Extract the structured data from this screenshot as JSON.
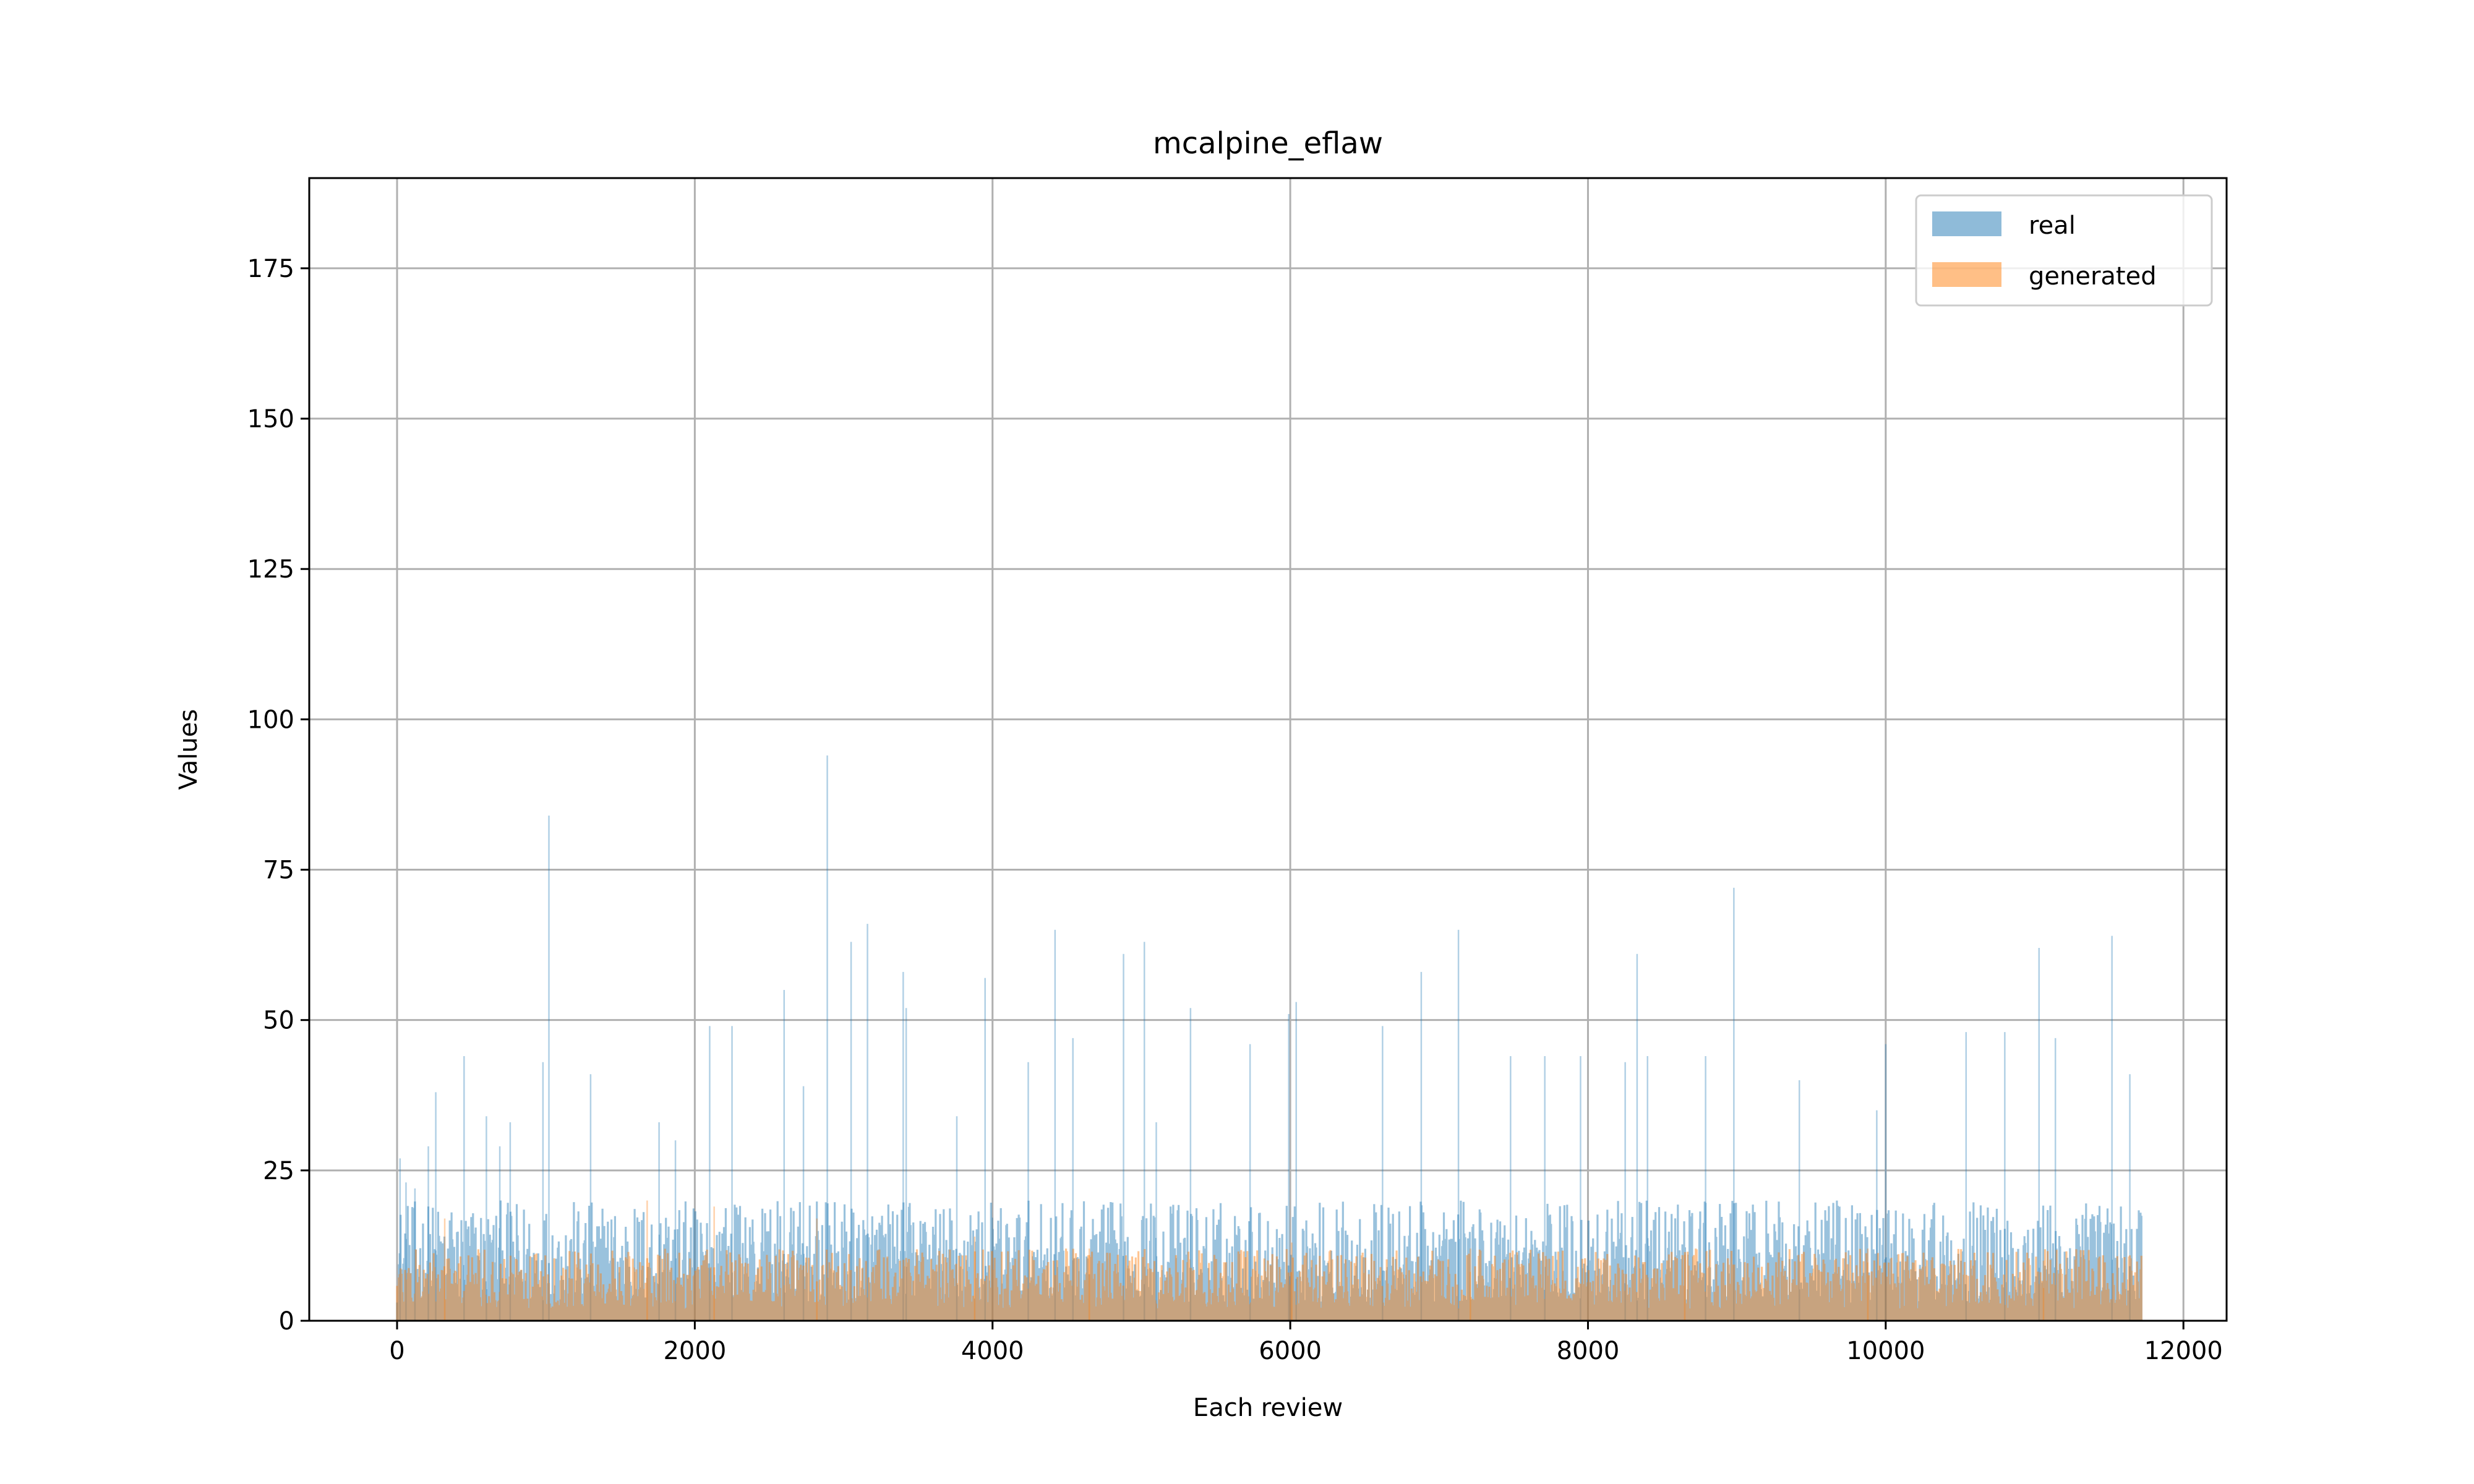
{
  "chart_data": {
    "type": "bar",
    "title": "mcalpine_eflaw",
    "xlabel": "Each review",
    "ylabel": "Values",
    "xlim": [
      -590,
      12290
    ],
    "ylim": [
      0,
      190
    ],
    "x_ticks": [
      0,
      2000,
      4000,
      6000,
      8000,
      10000,
      12000
    ],
    "y_ticks": [
      0,
      25,
      50,
      75,
      100,
      125,
      150,
      175
    ],
    "grid": true,
    "legend_position": "top-right",
    "n_points": 11720,
    "series": [
      {
        "name": "real",
        "color": "#1f77b4",
        "opacity": 0.5,
        "baseline_range": [
          3,
          20
        ],
        "spikes": [
          [
            20,
            27
          ],
          [
            60,
            23
          ],
          [
            120,
            22
          ],
          [
            210,
            29
          ],
          [
            260,
            38
          ],
          [
            450,
            44
          ],
          [
            600,
            34
          ],
          [
            690,
            29
          ],
          [
            760,
            33
          ],
          [
            980,
            43
          ],
          [
            1020,
            84
          ],
          [
            1300,
            41
          ],
          [
            1760,
            33
          ],
          [
            1870,
            30
          ],
          [
            2100,
            49
          ],
          [
            2250,
            49
          ],
          [
            2600,
            55
          ],
          [
            2730,
            39
          ],
          [
            2890,
            94
          ],
          [
            3050,
            63
          ],
          [
            3160,
            66
          ],
          [
            3400,
            58
          ],
          [
            3420,
            52
          ],
          [
            3760,
            34
          ],
          [
            3950,
            57
          ],
          [
            4240,
            43
          ],
          [
            4420,
            65
          ],
          [
            4540,
            47
          ],
          [
            4880,
            61
          ],
          [
            5020,
            63
          ],
          [
            5100,
            33
          ],
          [
            5330,
            52
          ],
          [
            5730,
            46
          ],
          [
            5990,
            51
          ],
          [
            6040,
            53
          ],
          [
            6620,
            49
          ],
          [
            6880,
            58
          ],
          [
            7130,
            65
          ],
          [
            7480,
            44
          ],
          [
            7710,
            44
          ],
          [
            7950,
            44
          ],
          [
            8250,
            43
          ],
          [
            8330,
            61
          ],
          [
            8400,
            44
          ],
          [
            8790,
            44
          ],
          [
            8980,
            72
          ],
          [
            9420,
            40
          ],
          [
            9940,
            35
          ],
          [
            10000,
            46
          ],
          [
            10540,
            48
          ],
          [
            10800,
            48
          ],
          [
            11030,
            62
          ],
          [
            11140,
            47
          ],
          [
            11520,
            64
          ],
          [
            11640,
            41
          ]
        ]
      },
      {
        "name": "generated",
        "color": "#ff7f0e",
        "opacity": 0.5,
        "baseline_range": [
          2,
          12
        ],
        "spikes": [
          [
            320,
            17
          ],
          [
            1680,
            20
          ],
          [
            2130,
            19
          ],
          [
            2820,
            17
          ],
          [
            3880,
            14
          ],
          [
            4650,
            12
          ],
          [
            6010,
            13
          ],
          [
            7210,
            12
          ],
          [
            8650,
            11
          ],
          [
            9880,
            12
          ],
          [
            11060,
            10
          ]
        ]
      }
    ]
  }
}
